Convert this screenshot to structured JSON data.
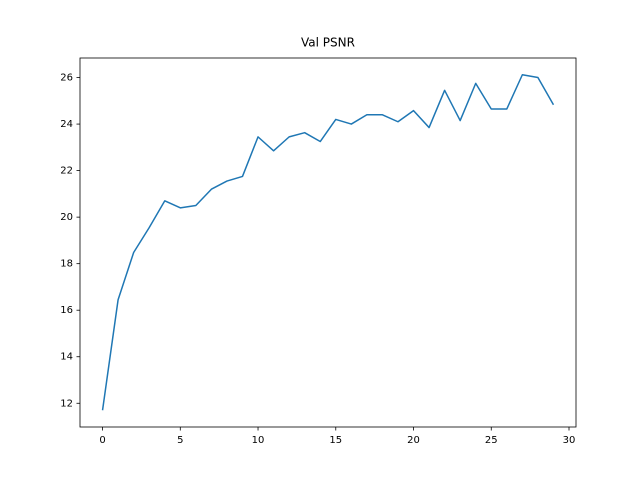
{
  "chart_data": {
    "type": "line",
    "title": "Val PSNR",
    "x": [
      0,
      1,
      2,
      3,
      4,
      5,
      6,
      7,
      8,
      9,
      10,
      11,
      12,
      13,
      14,
      15,
      16,
      17,
      18,
      19,
      20,
      21,
      22,
      23,
      24,
      25,
      26,
      27,
      28,
      29
    ],
    "series": [
      {
        "name": null,
        "color": "#1f77b4",
        "values": [
          11.7,
          16.45,
          18.48,
          19.55,
          20.7,
          20.4,
          20.5,
          21.2,
          21.55,
          21.75,
          23.45,
          22.85,
          23.45,
          23.63,
          23.25,
          24.2,
          24.0,
          24.4,
          24.4,
          24.1,
          24.58,
          23.85,
          25.45,
          24.15,
          25.75,
          24.65,
          24.65,
          26.12,
          26.0,
          24.83
        ]
      }
    ],
    "xlim": [
      -1.45,
      30.45
    ],
    "xticks": [
      0,
      5,
      10,
      15,
      20,
      25,
      30
    ],
    "ylim": [
      10.98,
      26.84
    ],
    "yticks": [
      12,
      14,
      16,
      18,
      20,
      22,
      24,
      26
    ],
    "grid": false
  }
}
